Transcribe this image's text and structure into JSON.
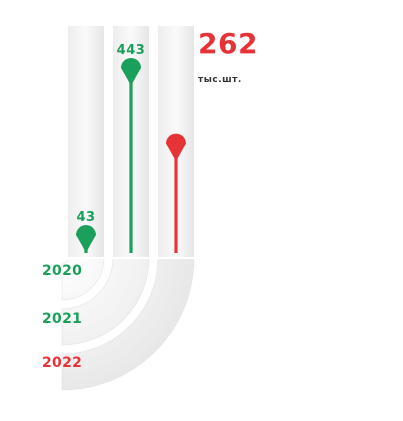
{
  "colors": {
    "green": "#1aa05a",
    "red": "#e63338",
    "track": "#eeeeee"
  },
  "chart_data": {
    "type": "bar",
    "categories": [
      "2020",
      "2021",
      "2022"
    ],
    "values": [
      43,
      443,
      262
    ],
    "value_labels": [
      "43",
      "443",
      "262"
    ],
    "unit": "тыс.шт.",
    "highlight_index": 2
  }
}
